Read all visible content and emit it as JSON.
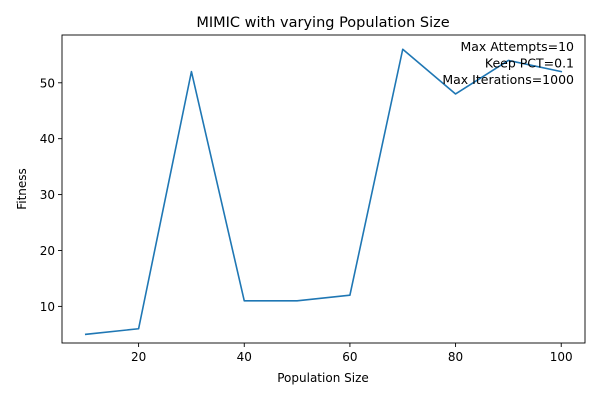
{
  "chart_data": {
    "type": "line",
    "title": "MIMIC with varying Population Size",
    "xlabel": "Population Size",
    "ylabel": "Fitness",
    "xlim": [
      5.5,
      104.5
    ],
    "ylim": [
      3.45,
      58.55
    ],
    "xticks": [
      20,
      40,
      60,
      80,
      100
    ],
    "yticks": [
      10,
      20,
      30,
      40,
      50
    ],
    "grid": false,
    "series": [
      {
        "color": "#1f77b4",
        "x": [
          10,
          20,
          30,
          40,
          50,
          60,
          70,
          80,
          90,
          100
        ],
        "y": [
          5,
          6,
          52,
          11,
          11,
          12,
          56,
          48,
          54,
          52
        ]
      }
    ],
    "annotations": [
      "Max Attempts=10",
      "Keep PCT=0.1",
      "Max Iterations=1000"
    ]
  }
}
